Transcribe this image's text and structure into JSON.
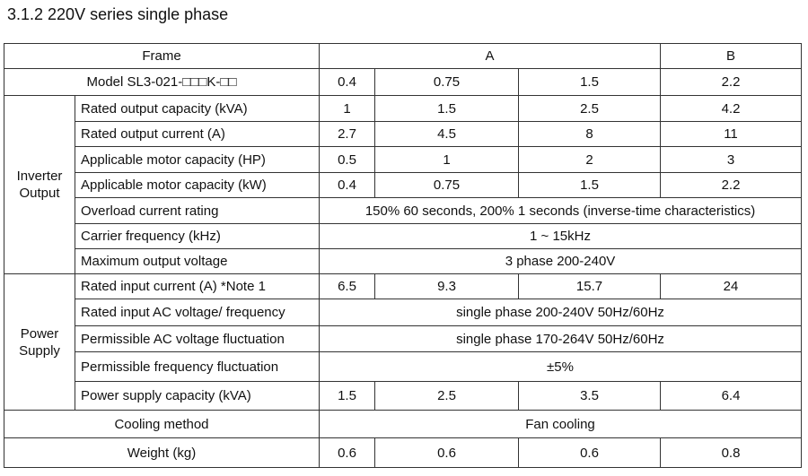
{
  "title": "3.1.2 220V series single phase",
  "table": {
    "header": [
      "Frame",
      "A",
      "B"
    ],
    "groups": [
      "Inverter Output",
      "Power Supply"
    ],
    "rows": [
      {
        "label": "Model SL3-021-□□□K-□□",
        "cells": [
          0.4,
          0.75,
          1.5,
          2.2
        ]
      },
      {
        "label": "Rated output capacity (kVA)",
        "cells": [
          1,
          1.5,
          2.5,
          4.2
        ]
      },
      {
        "label": "Rated output current (A)",
        "cells": [
          2.7,
          4.5,
          8,
          11
        ]
      },
      {
        "label": "Applicable motor capacity (HP)",
        "cells": [
          0.5,
          1,
          2,
          3
        ]
      },
      {
        "label": "Applicable motor capacity (kW)",
        "cells": [
          0.4,
          0.75,
          1.5,
          2.2
        ]
      },
      {
        "label": "Overload current rating",
        "cells": [
          "150% 60 seconds, 200% 1 seconds (inverse-time characteristics)"
        ]
      },
      {
        "label": "Carrier frequency (kHz)",
        "cells": [
          "1 ~ 15kHz"
        ]
      },
      {
        "label": "Maximum output voltage",
        "cells": [
          "3 phase 200-240V"
        ]
      },
      {
        "label": "Rated input current (A) *Note 1",
        "cells": [
          6.5,
          9.3,
          15.7,
          24
        ]
      },
      {
        "label": "Rated input AC voltage/ frequency",
        "cells": [
          "single phase 200-240V 50Hz/60Hz"
        ]
      },
      {
        "label": "Permissible AC voltage fluctuation",
        "cells": [
          "single phase 170-264V 50Hz/60Hz"
        ]
      },
      {
        "label": "Permissible frequency fluctuation",
        "cells": [
          "±5%"
        ]
      },
      {
        "label": "Power supply capacity (kVA)",
        "cells": [
          1.5,
          2.5,
          3.5,
          6.4
        ]
      },
      {
        "label": "Cooling method",
        "cells": [
          "Fan cooling"
        ]
      },
      {
        "label": "Weight (kg)",
        "cells": [
          0.6,
          0.6,
          0.6,
          0.8
        ]
      }
    ]
  }
}
